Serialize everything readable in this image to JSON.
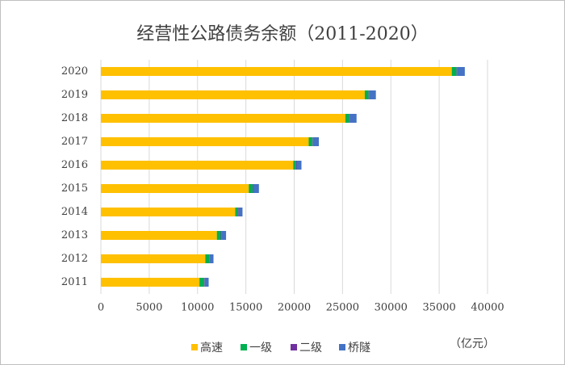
{
  "chart_data": {
    "type": "stacked-barh",
    "title": "经营性公路债务余额（2011-2020）",
    "unit_label": "（亿元）",
    "categories": [
      "2011",
      "2012",
      "2013",
      "2014",
      "2015",
      "2016",
      "2017",
      "2018",
      "2019",
      "2020"
    ],
    "series": [
      {
        "name": "高速",
        "color": "#FFC000",
        "values": [
          10200,
          10800,
          12000,
          13900,
          15300,
          19900,
          21500,
          25300,
          27300,
          36300
        ]
      },
      {
        "name": "一级",
        "color": "#00B050",
        "values": [
          500,
          400,
          400,
          300,
          400,
          300,
          400,
          400,
          400,
          500
        ]
      },
      {
        "name": "二级",
        "color": "#7030A0",
        "values": [
          50,
          50,
          50,
          50,
          50,
          50,
          50,
          50,
          50,
          50
        ]
      },
      {
        "name": "桥隧",
        "color": "#4472C4",
        "values": [
          400,
          400,
          500,
          400,
          600,
          500,
          600,
          700,
          700,
          800
        ]
      }
    ],
    "xlim": [
      0,
      40000
    ],
    "xticks": [
      0,
      5000,
      10000,
      15000,
      20000,
      25000,
      30000,
      35000,
      40000
    ],
    "grid": true
  }
}
